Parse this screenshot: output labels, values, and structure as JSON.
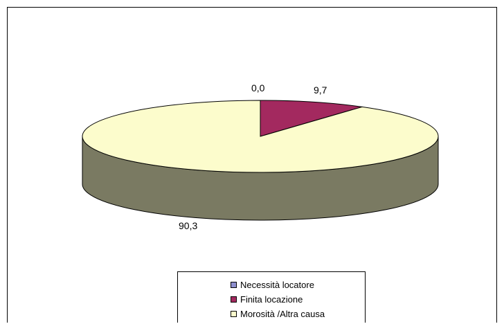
{
  "chart_data": {
    "type": "pie",
    "style": "3d",
    "categories": [
      "Necessità locatore",
      "Finita locazione",
      "Morosità /Altra causa"
    ],
    "values": [
      0.0,
      9.7,
      90.3
    ],
    "value_labels": [
      "0,0",
      "9,7",
      "90,3"
    ],
    "colors": [
      "#8e8fce",
      "#a3295f",
      "#fcfccc"
    ],
    "side_colors": [
      "#5f608a",
      "#6d1c40",
      "#7a7a62"
    ],
    "legend_position": "bottom"
  }
}
